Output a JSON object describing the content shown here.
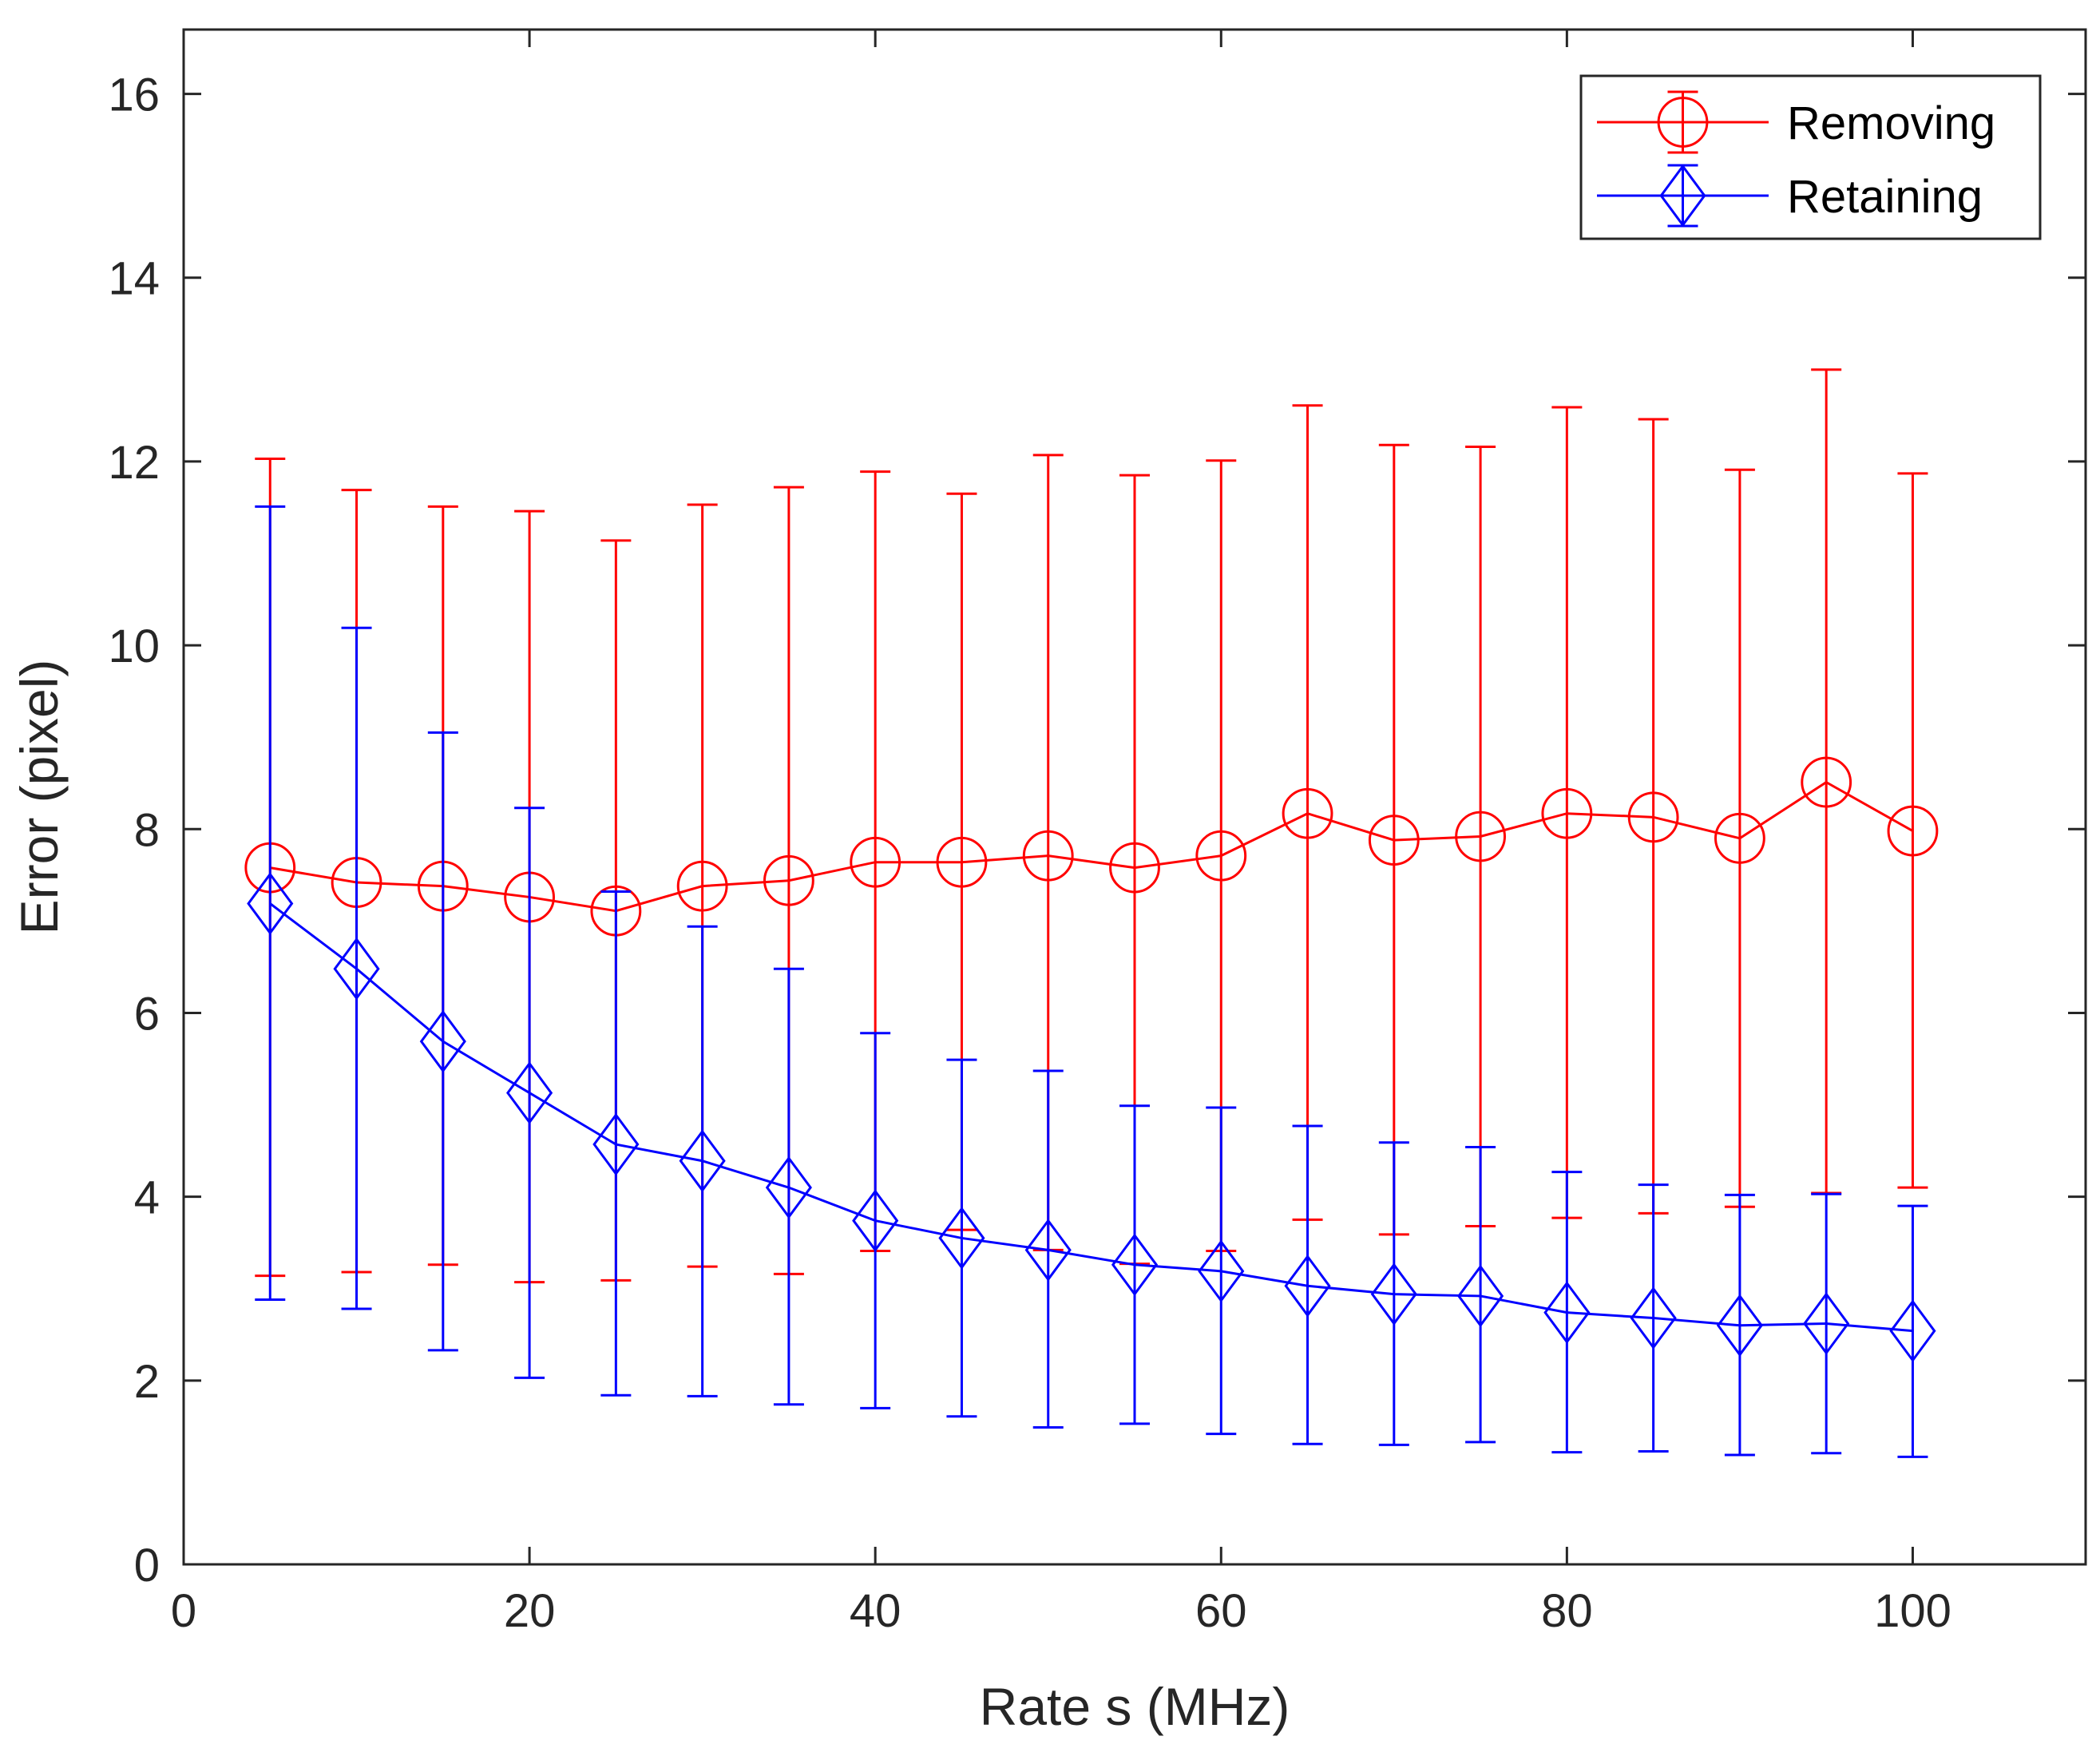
{
  "chart_data": {
    "type": "line",
    "title": "",
    "xlabel": "Rate s (MHz)",
    "ylabel": "Error (pixel)",
    "xlim": [
      0,
      110
    ],
    "ylim": [
      0,
      16.7
    ],
    "xticks": [
      0,
      20,
      40,
      60,
      80,
      100
    ],
    "yticks": [
      0,
      2,
      4,
      6,
      8,
      10,
      12,
      14,
      16
    ],
    "x": [
      5,
      10,
      15,
      20,
      25,
      30,
      35,
      40,
      45,
      50,
      55,
      60,
      65,
      70,
      75,
      80,
      85,
      90,
      95,
      100
    ],
    "legend_position": "top-right",
    "series": [
      {
        "name": "Removing",
        "color": "#ff0000",
        "marker": "circle",
        "values": [
          7.58,
          7.42,
          7.38,
          7.26,
          7.11,
          7.38,
          7.44,
          7.64,
          7.64,
          7.71,
          7.58,
          7.71,
          8.17,
          7.88,
          7.92,
          8.17,
          8.13,
          7.9,
          8.51,
          7.98
        ],
        "lower": [
          3.14,
          3.18,
          3.26,
          3.07,
          3.09,
          3.24,
          3.16,
          3.41,
          3.64,
          3.42,
          3.27,
          3.41,
          3.75,
          3.59,
          3.68,
          3.77,
          3.82,
          3.89,
          4.04,
          4.1
        ],
        "upper": [
          12.03,
          11.69,
          11.51,
          11.46,
          11.14,
          11.53,
          11.72,
          11.89,
          11.65,
          12.07,
          11.85,
          12.01,
          12.61,
          12.18,
          12.16,
          12.59,
          12.46,
          11.91,
          13.0,
          11.87
        ]
      },
      {
        "name": "Retaining",
        "color": "#0000ff",
        "marker": "diamond",
        "values": [
          7.19,
          6.48,
          5.69,
          5.13,
          4.57,
          4.39,
          4.1,
          3.74,
          3.55,
          3.42,
          3.26,
          3.19,
          3.03,
          2.94,
          2.92,
          2.74,
          2.68,
          2.6,
          2.62,
          2.54
        ],
        "lower": [
          2.88,
          2.78,
          2.33,
          2.03,
          1.84,
          1.83,
          1.74,
          1.7,
          1.61,
          1.49,
          1.53,
          1.42,
          1.31,
          1.3,
          1.33,
          1.22,
          1.23,
          1.19,
          1.21,
          1.17
        ],
        "upper": [
          11.51,
          10.19,
          9.05,
          8.23,
          7.32,
          6.94,
          6.48,
          5.78,
          5.49,
          5.37,
          4.99,
          4.97,
          4.77,
          4.59,
          4.54,
          4.27,
          4.13,
          4.02,
          4.03,
          3.9
        ]
      }
    ]
  }
}
